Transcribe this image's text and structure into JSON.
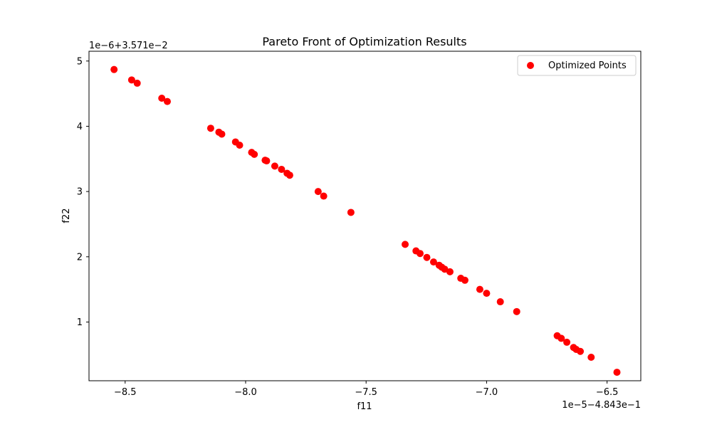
{
  "chart_data": {
    "type": "scatter",
    "title": "Pareto Front of Optimization Results",
    "xlabel": "f11",
    "ylabel": "f22",
    "x_offset_label": "1e−5−4.843e−1",
    "y_offset_label": "1e−6+3.571e−2",
    "xlim": [
      -8.65,
      -6.36
    ],
    "ylim": [
      0.1,
      5.15
    ],
    "x_ticks": [
      -8.5,
      -8.0,
      -7.5,
      -7.0,
      -6.5
    ],
    "x_tick_labels": [
      "−8.5",
      "−8.0",
      "−7.5",
      "−7.0",
      "−6.5"
    ],
    "y_ticks": [
      1,
      2,
      3,
      4,
      5
    ],
    "y_tick_labels": [
      "1",
      "2",
      "3",
      "4",
      "5"
    ],
    "grid": false,
    "legend_position": "top-right",
    "series": [
      {
        "name": "Optimized Points",
        "color": "#ff0000",
        "points": [
          [
            -8.546,
            4.87
          ],
          [
            -8.473,
            4.71
          ],
          [
            -8.45,
            4.66
          ],
          [
            -8.348,
            4.43
          ],
          [
            -8.325,
            4.38
          ],
          [
            -8.145,
            3.97
          ],
          [
            -8.111,
            3.91
          ],
          [
            -8.099,
            3.88
          ],
          [
            -8.042,
            3.76
          ],
          [
            -8.025,
            3.71
          ],
          [
            -7.975,
            3.6
          ],
          [
            -7.964,
            3.57
          ],
          [
            -7.919,
            3.48
          ],
          [
            -7.913,
            3.47
          ],
          [
            -7.879,
            3.39
          ],
          [
            -7.851,
            3.34
          ],
          [
            -7.828,
            3.28
          ],
          [
            -7.817,
            3.25
          ],
          [
            -7.699,
            3.0
          ],
          [
            -7.676,
            2.93
          ],
          [
            -7.563,
            2.68
          ],
          [
            -7.338,
            2.19
          ],
          [
            -7.293,
            2.09
          ],
          [
            -7.276,
            2.05
          ],
          [
            -7.248,
            1.99
          ],
          [
            -7.22,
            1.92
          ],
          [
            -7.197,
            1.87
          ],
          [
            -7.186,
            1.84
          ],
          [
            -7.174,
            1.81
          ],
          [
            -7.152,
            1.77
          ],
          [
            -7.107,
            1.67
          ],
          [
            -7.09,
            1.64
          ],
          [
            -7.028,
            1.5
          ],
          [
            -7.0,
            1.44
          ],
          [
            -6.943,
            1.31
          ],
          [
            -6.875,
            1.16
          ],
          [
            -6.707,
            0.79
          ],
          [
            -6.69,
            0.75
          ],
          [
            -6.667,
            0.69
          ],
          [
            -6.639,
            0.61
          ],
          [
            -6.628,
            0.58
          ],
          [
            -6.611,
            0.55
          ],
          [
            -6.566,
            0.46
          ],
          [
            -6.459,
            0.23
          ]
        ]
      }
    ]
  }
}
